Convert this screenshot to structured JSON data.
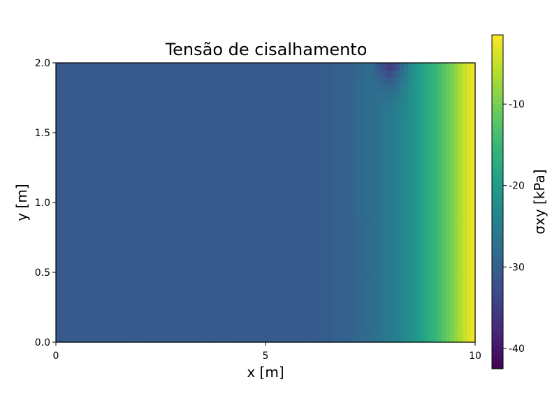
{
  "chart_data": {
    "type": "heatmap",
    "title": "Tensão de cisalhamento",
    "xlabel": "x [m]",
    "ylabel": "y [m]",
    "xlim": [
      0,
      10
    ],
    "ylim": [
      0,
      2
    ],
    "x_ticks": [
      0,
      5,
      10
    ],
    "x_tick_labels": [
      "0",
      "5",
      "10"
    ],
    "y_ticks": [
      0.0,
      0.5,
      1.0,
      1.5,
      2.0
    ],
    "y_tick_labels": [
      "0.0",
      "0.5",
      "1.0",
      "1.5",
      "2.0"
    ],
    "colormap": "viridis",
    "colorbar": {
      "label": "σxy [kPa]",
      "range": [
        -42.5,
        -1.5
      ],
      "ticks": [
        -10,
        -20,
        -30,
        -40
      ],
      "tick_labels": [
        "-10",
        "-20",
        "-30",
        "-40"
      ]
    },
    "grid": false,
    "column_profile": {
      "x": [
        0,
        6,
        6.5,
        7,
        7.5,
        8,
        8.5,
        9,
        9.5,
        9.8,
        10
      ],
      "sigma_xy": [
        -31,
        -31,
        -30.5,
        -29.5,
        -28,
        -25.5,
        -22,
        -16,
        -9,
        -4,
        -2
      ]
    },
    "corner_anomaly": {
      "x": [
        7.5,
        8.5
      ],
      "y": [
        1.6,
        2.0
      ],
      "min_value": -42.5
    }
  }
}
